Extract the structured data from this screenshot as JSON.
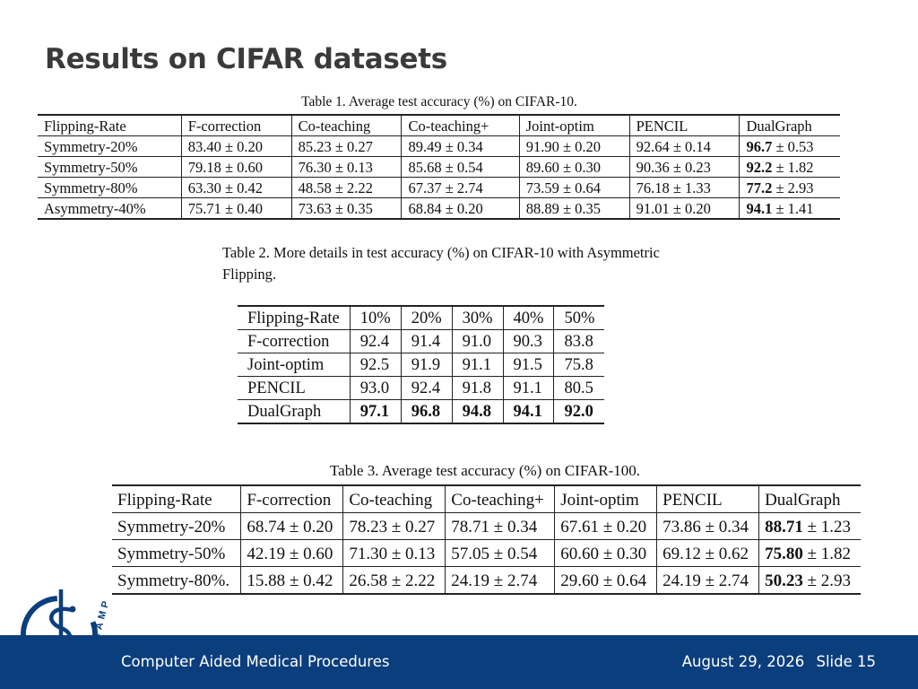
{
  "slide": {
    "title": "Results on CIFAR datasets",
    "footer_org": "Computer Aided Medical Procedures",
    "footer_date": "August 29, 2026",
    "footer_slide": "Slide 15",
    "logo_text": "CAMP",
    "brand_color": "#0b3e7d"
  },
  "table1": {
    "caption": "Table 1. Average test accuracy (%) on CIFAR-10.",
    "headers": [
      "Flipping-Rate",
      "F-correction",
      "Co-teaching",
      "Co-teaching+",
      "Joint-optim",
      "PENCIL",
      "DualGraph"
    ],
    "rows": [
      [
        "Symmetry-20%",
        "83.40 ± 0.20",
        "85.23 ± 0.27",
        "89.49 ± 0.34",
        "91.90 ± 0.20",
        "92.64 ± 0.14",
        "96.7",
        "± 0.53"
      ],
      [
        "Symmetry-50%",
        "79.18 ± 0.60",
        "76.30 ± 0.13",
        "85.68 ± 0.54",
        "89.60 ± 0.30",
        "90.36 ± 0.23",
        "92.2",
        "± 1.82"
      ],
      [
        "Symmetry-80%",
        "63.30 ± 0.42",
        "48.58 ± 2.22",
        "67.37 ± 2.74",
        "73.59 ± 0.64",
        "76.18 ± 1.33",
        "77.2",
        "± 2.93"
      ],
      [
        "Asymmetry-40%",
        "75.71 ± 0.40",
        "73.63 ± 0.35",
        "68.84 ± 0.20",
        "88.89 ± 0.35",
        "91.01 ± 0.20",
        "94.1",
        "± 1.41"
      ]
    ]
  },
  "table2": {
    "caption": "Table 2.   More details in test accuracy (%) on CIFAR-10 with Asymmetric Flipping.",
    "headers": [
      "Flipping-Rate",
      "10%",
      "20%",
      "30%",
      "40%",
      "50%"
    ],
    "rows": [
      [
        "F-correction",
        "92.4",
        "91.4",
        "91.0",
        "90.3",
        "83.8"
      ],
      [
        "Joint-optim",
        "92.5",
        "91.9",
        "91.1",
        "91.5",
        "75.8"
      ],
      [
        "PENCIL",
        "93.0",
        "92.4",
        "91.8",
        "91.1",
        "80.5"
      ],
      [
        "DualGraph",
        "97.1",
        "96.8",
        "94.8",
        "94.1",
        "92.0"
      ]
    ]
  },
  "table3": {
    "caption": "Table 3. Average test accuracy (%) on CIFAR-100.",
    "headers": [
      "Flipping-Rate",
      "F-correction",
      "Co-teaching",
      "Co-teaching+",
      "Joint-optim",
      "PENCIL",
      "DualGraph"
    ],
    "rows": [
      [
        "Symmetry-20%",
        "68.74 ± 0.20",
        "78.23 ± 0.27",
        "78.71 ± 0.34",
        "67.61 ± 0.20",
        "73.86 ± 0.34",
        "88.71",
        "± 1.23"
      ],
      [
        "Symmetry-50%",
        "42.19 ± 0.60",
        "71.30 ± 0.13",
        "57.05 ± 0.54",
        "60.60 ± 0.30",
        "69.12 ± 0.62",
        "75.80",
        "± 1.82"
      ],
      [
        "Symmetry-80%.",
        "15.88 ± 0.42",
        "26.58 ± 2.22",
        "24.19 ± 2.74",
        "29.60 ± 0.64",
        "24.19 ± 2.74",
        "50.23",
        "± 2.93"
      ]
    ]
  }
}
